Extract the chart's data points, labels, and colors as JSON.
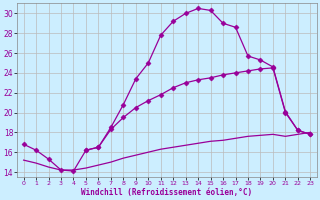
{
  "xlabel": "Windchill (Refroidissement éolien,°C)",
  "background_color": "#cceeff",
  "line_color": "#990099",
  "grid_color": "#bbbbbb",
  "xlim": [
    -0.5,
    23.5
  ],
  "ylim": [
    13.5,
    31.0
  ],
  "xticks": [
    0,
    1,
    2,
    3,
    4,
    5,
    6,
    7,
    8,
    9,
    10,
    11,
    12,
    13,
    14,
    15,
    16,
    17,
    18,
    19,
    20,
    21,
    22,
    23
  ],
  "yticks": [
    14,
    16,
    18,
    20,
    22,
    24,
    26,
    28,
    30
  ],
  "curve1_x": [
    0,
    1,
    2,
    3,
    4,
    5,
    6,
    7,
    8,
    9,
    10,
    11,
    12,
    13,
    14,
    15,
    16,
    17,
    18,
    19,
    20,
    21,
    22,
    23
  ],
  "curve1_y": [
    16.8,
    16.2,
    15.3,
    14.2,
    14.1,
    16.2,
    16.5,
    18.5,
    20.8,
    23.4,
    25.0,
    27.8,
    29.2,
    30.0,
    30.5,
    30.3,
    29.0,
    28.6,
    25.7,
    25.3,
    24.6,
    20.1,
    18.2,
    17.8
  ],
  "curve2_x": [
    5,
    6,
    7,
    8,
    9,
    10,
    11,
    12,
    13,
    14,
    15,
    16,
    17,
    18,
    19,
    20,
    21,
    22,
    23
  ],
  "curve2_y": [
    16.2,
    16.5,
    18.3,
    19.5,
    20.5,
    21.2,
    21.8,
    22.5,
    23.0,
    23.3,
    23.5,
    23.8,
    24.0,
    24.2,
    24.4,
    24.5,
    20.0,
    18.2,
    17.8
  ],
  "curve3_x": [
    0,
    1,
    2,
    3,
    4,
    5,
    6,
    7,
    8,
    9,
    10,
    11,
    12,
    13,
    14,
    15,
    16,
    17,
    18,
    19,
    20,
    21,
    22,
    23
  ],
  "curve3_y": [
    15.2,
    14.9,
    14.5,
    14.2,
    14.2,
    14.4,
    14.7,
    15.0,
    15.4,
    15.7,
    16.0,
    16.3,
    16.5,
    16.7,
    16.9,
    17.1,
    17.2,
    17.4,
    17.6,
    17.7,
    17.8,
    17.6,
    17.8,
    18.0
  ],
  "marker": "D",
  "markersize": 2.5,
  "linewidth": 0.9
}
